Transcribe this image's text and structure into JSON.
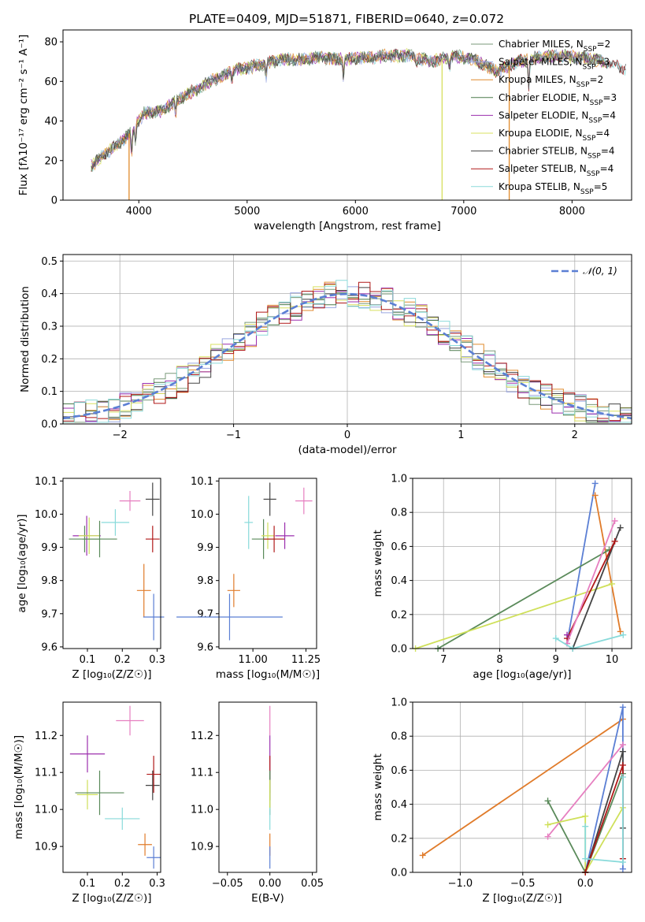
{
  "title": "PLATE=0409, MJD=51871, FIBERID=0640, z=0.072",
  "colors": {
    "Chabrier MILES": "#7a9a7a",
    "Salpeter MILES": "#9aa6e0",
    "Kroupa MILES": "#e08a2c",
    "Chabrier ELODIE": "#4c7a4c",
    "Salpeter ELODIE": "#9b2fae",
    "Kroupa ELODIE": "#d8e060",
    "Chabrier STELIB": "#444444",
    "Salpeter STELIB": "#b01818",
    "Kroupa STELIB": "#8cdada",
    "blue": "#5b7fd4",
    "pink": "#e67fc0",
    "orange": "#e07b2a",
    "green": "#5a8a5a",
    "purple": "#9b2fae",
    "lime": "#cfe05a",
    "dark": "#444444",
    "red": "#b01818",
    "cyan": "#88dada"
  },
  "chart_data": [
    {
      "id": "spectrum",
      "type": "line",
      "title": "PLATE=0409, MJD=51871, FIBERID=0640, z=0.072",
      "xlabel": "wavelength [Angstrom, rest frame]",
      "ylabel": "Flux [fλ10⁻¹⁷ erg cm⁻² s⁻¹ A⁻¹]",
      "xlim": [
        3300,
        8550
      ],
      "ylim": [
        0,
        86
      ],
      "xticks": [
        4000,
        5000,
        6000,
        7000,
        8000
      ],
      "yticks": [
        0,
        20,
        40,
        60,
        80
      ],
      "legend": [
        "Chabrier MILES, N_SSP=2",
        "Salpeter MILES, N_SSP=3",
        "Kroupa MILES, N_SSP=2",
        "Chabrier ELODIE, N_SSP=3",
        "Salpeter ELODIE, N_SSP=4",
        "Kroupa ELODIE, N_SSP=4",
        "Chabrier STELIB, N_SSP=4",
        "Salpeter STELIB, N_SSP=4",
        "Kroupa STELIB, N_SSP=5"
      ],
      "continuum": {
        "x": [
          3560,
          3700,
          3850,
          3950,
          4050,
          4200,
          4350,
          4500,
          4700,
          4900,
          5100,
          5300,
          5500,
          5700,
          5900,
          6100,
          6300,
          6500,
          6700,
          6900,
          7100,
          7300,
          7500,
          7700,
          7900,
          8100,
          8300,
          8500
        ],
        "y": [
          17,
          24,
          30,
          36,
          44,
          45,
          50,
          55,
          61,
          66,
          68,
          71,
          71,
          72,
          71,
          72,
          73,
          73,
          70,
          73,
          71,
          65,
          70,
          72,
          73,
          72,
          70,
          66
        ]
      },
      "spikes": [
        {
          "x": 3910,
          "color": "Kroupa MILES"
        },
        {
          "x": 6800,
          "color": "Kroupa ELODIE"
        },
        {
          "x": 7420,
          "color": "Kroupa MILES"
        }
      ]
    },
    {
      "id": "residuals",
      "type": "histogram",
      "xlabel": "(data-model)/error",
      "ylabel": "Normed distribution",
      "xlim": [
        -2.5,
        2.5
      ],
      "ylim": [
        0,
        0.52
      ],
      "xticks": [
        -2,
        -1,
        0,
        1,
        2
      ],
      "yticks": [
        0.0,
        0.1,
        0.2,
        0.3,
        0.4,
        0.5
      ],
      "bin_width": 0.1,
      "legend": "𝒩(0, 1)",
      "series": [
        "Chabrier MILES",
        "Salpeter MILES",
        "Kroupa MILES",
        "Chabrier ELODIE",
        "Salpeter ELODIE",
        "Kroupa ELODIE",
        "Chabrier STELIB",
        "Salpeter STELIB",
        "Kroupa STELIB"
      ]
    },
    {
      "id": "z_age",
      "type": "scatter",
      "xlabel": "Z [log₁₀(Z/Z☉)]",
      "ylabel": "age  [log₁₀(age/yr)]",
      "xlim": [
        0.03,
        0.31
      ],
      "ylim": [
        9.595,
        10.108
      ],
      "xticks": [
        0.1,
        0.2,
        0.3
      ],
      "yticks": [
        9.6,
        9.7,
        9.8,
        9.9,
        10.0,
        10.1
      ],
      "points": [
        {
          "x": 0.098,
          "y": 9.935,
          "ex": 0.04,
          "ey": 0.06,
          "color": "purple"
        },
        {
          "x": 0.092,
          "y": 9.925,
          "ex": 0.045,
          "ey": 0.04,
          "color": "green"
        },
        {
          "x": 0.105,
          "y": 9.935,
          "ex": 0.03,
          "ey": 0.055,
          "color": "lime"
        },
        {
          "x": 0.135,
          "y": 9.925,
          "ex": 0.05,
          "ey": 0.055,
          "color": "green"
        },
        {
          "x": 0.222,
          "y": 10.04,
          "ex": 0.03,
          "ey": 0.03,
          "color": "pink"
        },
        {
          "x": 0.18,
          "y": 9.975,
          "ex": 0.04,
          "ey": 0.04,
          "color": "cyan"
        },
        {
          "x": 0.287,
          "y": 10.045,
          "ex": 0.02,
          "ey": 0.05,
          "color": "dark"
        },
        {
          "x": 0.287,
          "y": 9.925,
          "ex": 0.02,
          "ey": 0.04,
          "color": "red"
        },
        {
          "x": 0.262,
          "y": 9.77,
          "ex": 0.02,
          "ey": 0.08,
          "color": "orange"
        },
        {
          "x": 0.29,
          "y": 9.69,
          "ex": 0.03,
          "ey": 0.07,
          "color": "blue"
        }
      ]
    },
    {
      "id": "mass_age",
      "type": "scatter",
      "xlabel": "mass [log₁₀(M/M☉)]",
      "ylabel": "",
      "xlim": [
        10.84,
        11.3
      ],
      "ylim": [
        9.595,
        10.108
      ],
      "xticks": [
        11.0,
        11.25
      ],
      "yticks": [
        9.6,
        9.7,
        9.8,
        9.9,
        10.0,
        10.1
      ],
      "points": [
        {
          "x": 10.89,
          "y": 9.69,
          "ex": 0.25,
          "ey": 0.07,
          "color": "blue"
        },
        {
          "x": 10.91,
          "y": 9.77,
          "ex": 0.03,
          "ey": 0.05,
          "color": "orange"
        },
        {
          "x": 10.98,
          "y": 9.975,
          "ex": 0.02,
          "ey": 0.08,
          "color": "cyan"
        },
        {
          "x": 11.05,
          "y": 9.925,
          "ex": 0.055,
          "ey": 0.06,
          "color": "green"
        },
        {
          "x": 11.07,
          "y": 9.935,
          "ex": 0.03,
          "ey": 0.04,
          "color": "lime"
        },
        {
          "x": 11.08,
          "y": 10.045,
          "ex": 0.03,
          "ey": 0.05,
          "color": "dark"
        },
        {
          "x": 11.1,
          "y": 9.925,
          "ex": 0.05,
          "ey": 0.04,
          "color": "red"
        },
        {
          "x": 11.15,
          "y": 9.935,
          "ex": 0.045,
          "ey": 0.04,
          "color": "purple"
        },
        {
          "x": 11.24,
          "y": 10.04,
          "ex": 0.04,
          "ey": 0.04,
          "color": "pink"
        }
      ]
    },
    {
      "id": "age_weight",
      "type": "line",
      "xlabel": "age  [log₁₀(age/yr)]",
      "ylabel": "mass weight",
      "xlim": [
        6.45,
        10.35
      ],
      "ylim": [
        0.0,
        1.0
      ],
      "xticks": [
        7,
        8,
        9,
        10
      ],
      "yticks": [
        0.0,
        0.2,
        0.4,
        0.6,
        0.8,
        1.0
      ],
      "series": [
        {
          "color": "blue",
          "x": [
            9.2,
            9.7
          ],
          "y": [
            0.03,
            0.97
          ]
        },
        {
          "color": "orange",
          "x": [
            9.7,
            10.15
          ],
          "y": [
            0.9,
            0.1
          ]
        },
        {
          "color": "green",
          "x": [
            6.9,
            9.95
          ],
          "y": [
            0.0,
            0.58
          ]
        },
        {
          "color": "lime",
          "x": [
            6.5,
            10.0
          ],
          "y": [
            0.0,
            0.38
          ]
        },
        {
          "color": "dark",
          "x": [
            9.3,
            10.15
          ],
          "y": [
            0.0,
            0.71
          ]
        },
        {
          "color": "red",
          "x": [
            9.2,
            10.05
          ],
          "y": [
            0.06,
            0.63
          ]
        },
        {
          "color": "pink",
          "x": [
            9.2,
            10.05
          ],
          "y": [
            0.03,
            0.75
          ]
        },
        {
          "color": "cyan",
          "x": [
            9.0,
            9.3,
            10.2
          ],
          "y": [
            0.06,
            0.0,
            0.08
          ]
        },
        {
          "color": "purple",
          "x": [
            9.2
          ],
          "y": [
            0.08
          ]
        }
      ]
    },
    {
      "id": "z_mass",
      "type": "scatter",
      "xlabel": "Z [log₁₀(Z/Z☉)]",
      "ylabel": "mass [log₁₀(M/M☉)]",
      "xlim": [
        0.03,
        0.31
      ],
      "ylim": [
        10.83,
        11.29
      ],
      "xticks": [
        0.1,
        0.2,
        0.3
      ],
      "yticks": [
        10.9,
        11.0,
        11.1,
        11.2
      ],
      "points": [
        {
          "x": 0.1,
          "y": 11.15,
          "ex": 0.05,
          "ey": 0.05,
          "color": "purple"
        },
        {
          "x": 0.1,
          "y": 11.04,
          "ex": 0.03,
          "ey": 0.04,
          "color": "lime"
        },
        {
          "x": 0.135,
          "y": 11.045,
          "ex": 0.07,
          "ey": 0.06,
          "color": "green"
        },
        {
          "x": 0.222,
          "y": 11.24,
          "ex": 0.04,
          "ey": 0.04,
          "color": "pink"
        },
        {
          "x": 0.2,
          "y": 10.975,
          "ex": 0.05,
          "ey": 0.03,
          "color": "cyan"
        },
        {
          "x": 0.287,
          "y": 11.065,
          "ex": 0.02,
          "ey": 0.04,
          "color": "dark"
        },
        {
          "x": 0.29,
          "y": 11.095,
          "ex": 0.02,
          "ey": 0.05,
          "color": "red"
        },
        {
          "x": 0.265,
          "y": 10.905,
          "ex": 0.02,
          "ey": 0.03,
          "color": "orange"
        },
        {
          "x": 0.29,
          "y": 10.87,
          "ex": 0.02,
          "ey": 0.03,
          "color": "blue"
        }
      ]
    },
    {
      "id": "ebv_mass",
      "type": "scatter",
      "xlabel": "E(B-V)",
      "ylabel": "",
      "xlim": [
        -0.06,
        0.055
      ],
      "ylim": [
        10.83,
        11.29
      ],
      "xticks": [
        -0.05,
        0.0,
        0.05
      ],
      "yticks": [
        10.9,
        11.0,
        11.1,
        11.2
      ],
      "points": [
        {
          "x": 0.0,
          "y": 11.24,
          "ex": 0,
          "ey": 0.04,
          "color": "pink"
        },
        {
          "x": 0.0,
          "y": 11.15,
          "ex": 0,
          "ey": 0.05,
          "color": "purple"
        },
        {
          "x": 0.0,
          "y": 11.095,
          "ex": 0,
          "ey": 0.05,
          "color": "red"
        },
        {
          "x": 0.0,
          "y": 11.065,
          "ex": 0,
          "ey": 0.04,
          "color": "dark"
        },
        {
          "x": 0.0,
          "y": 11.045,
          "ex": 0,
          "ey": 0.06,
          "color": "green"
        },
        {
          "x": 0.0,
          "y": 11.04,
          "ex": 0,
          "ey": 0.04,
          "color": "lime"
        },
        {
          "x": 0.0,
          "y": 10.975,
          "ex": 0,
          "ey": 0.03,
          "color": "cyan"
        },
        {
          "x": 0.0,
          "y": 10.905,
          "ex": 0,
          "ey": 0.03,
          "color": "orange"
        },
        {
          "x": 0.0,
          "y": 10.87,
          "ex": 0,
          "ey": 0.03,
          "color": "blue"
        }
      ]
    },
    {
      "id": "z_weight",
      "type": "line",
      "xlabel": "Z [log₁₀(Z/Z☉)]",
      "ylabel": "mass weight",
      "xlim": [
        -1.38,
        0.37
      ],
      "ylim": [
        0.0,
        1.0
      ],
      "xticks": [
        -1.0,
        -0.5,
        0.0
      ],
      "yticks": [
        0.0,
        0.2,
        0.4,
        0.6,
        0.8,
        1.0
      ],
      "series": [
        {
          "color": "orange",
          "x": [
            -1.3,
            0.3
          ],
          "y": [
            0.1,
            0.9
          ]
        },
        {
          "color": "blue",
          "x": [
            0.0,
            0.3,
            0.3
          ],
          "y": [
            0.0,
            0.97,
            0.02
          ]
        },
        {
          "color": "green",
          "x": [
            -0.3,
            0.0,
            0.3
          ],
          "y": [
            0.42,
            0.0,
            0.58
          ]
        },
        {
          "color": "pink",
          "x": [
            -0.3,
            0.3
          ],
          "y": [
            0.21,
            0.75
          ]
        },
        {
          "color": "lime",
          "x": [
            -0.3,
            0.0,
            0.0,
            0.3
          ],
          "y": [
            0.28,
            0.33,
            0.0,
            0.38
          ]
        },
        {
          "color": "dark",
          "x": [
            0.0,
            0.3,
            0.3
          ],
          "y": [
            0.0,
            0.71,
            0.26
          ]
        },
        {
          "color": "red",
          "x": [
            0.0,
            0.3,
            0.3
          ],
          "y": [
            0.0,
            0.63,
            0.08
          ]
        },
        {
          "color": "cyan",
          "x": [
            0.0,
            0.0,
            0.3,
            0.3
          ],
          "y": [
            0.27,
            0.08,
            0.06,
            0.56
          ]
        }
      ]
    }
  ]
}
